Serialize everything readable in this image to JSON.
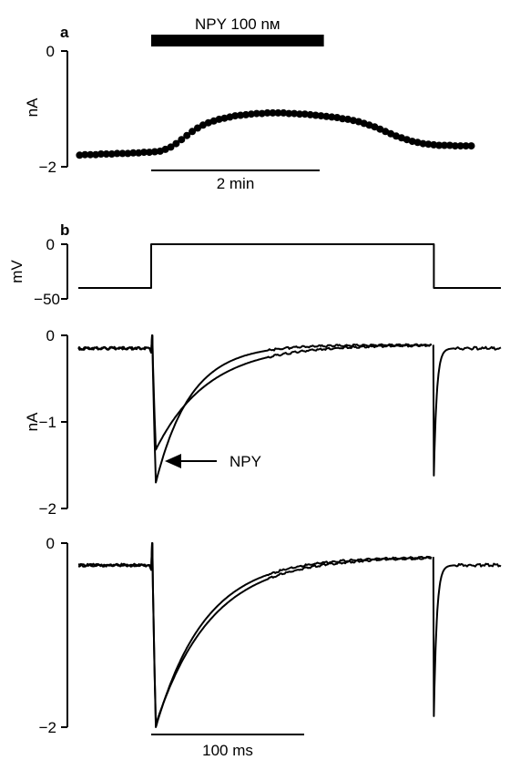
{
  "panels": {
    "a": "a",
    "b": "b"
  },
  "chart_data": [
    {
      "id": "a",
      "type": "scatter",
      "ylabel": "nA",
      "ylim": [
        -2,
        0
      ],
      "yticks": [
        {
          "v": 0,
          "label": "0"
        },
        {
          "v": -2,
          "label": "−2"
        }
      ],
      "bar_label": "NPY 100 nм",
      "bar_span_min": [
        0,
        2.05
      ],
      "scalebar_label": "2 min",
      "scalebar_min": 2,
      "x_min": [
        -0.85,
        3.8
      ],
      "y": [
        -1.8,
        -1.79,
        -1.79,
        -1.79,
        -1.78,
        -1.78,
        -1.78,
        -1.77,
        -1.77,
        -1.77,
        -1.76,
        -1.76,
        -1.75,
        -1.75,
        -1.74,
        -1.73,
        -1.7,
        -1.66,
        -1.6,
        -1.53,
        -1.46,
        -1.39,
        -1.33,
        -1.28,
        -1.24,
        -1.21,
        -1.18,
        -1.16,
        -1.14,
        -1.12,
        -1.11,
        -1.1,
        -1.09,
        -1.08,
        -1.08,
        -1.07,
        -1.07,
        -1.07,
        -1.07,
        -1.08,
        -1.08,
        -1.09,
        -1.09,
        -1.1,
        -1.11,
        -1.12,
        -1.13,
        -1.14,
        -1.15,
        -1.17,
        -1.18,
        -1.2,
        -1.22,
        -1.25,
        -1.28,
        -1.31,
        -1.35,
        -1.39,
        -1.43,
        -1.47,
        -1.5,
        -1.53,
        -1.56,
        -1.58,
        -1.6,
        -1.61,
        -1.62,
        -1.63,
        -1.63,
        -1.63,
        -1.64,
        -1.64,
        -1.64,
        -1.64
      ]
    },
    {
      "id": "b-voltage",
      "type": "line",
      "ylabel": "mV",
      "ylim": [
        -50,
        0
      ],
      "yticks": [
        {
          "v": 0,
          "label": "0"
        },
        {
          "v": -50,
          "label": "−50"
        }
      ],
      "x_ms": [
        -125,
        0,
        0,
        485,
        485,
        600
      ],
      "y": [
        -40,
        -40,
        0,
        0,
        -40,
        -40
      ]
    },
    {
      "id": "b-current-1",
      "type": "line",
      "ylabel": "nA",
      "ylim": [
        -2,
        0
      ],
      "yticks": [
        {
          "v": 0,
          "label": "0"
        },
        {
          "v": -1,
          "label": "−1"
        },
        {
          "v": -2,
          "label": "−2"
        }
      ],
      "annotation": "NPY",
      "holding_nA": -0.15,
      "step_end_nA": -0.11,
      "series": [
        {
          "peak_nA": -1.7,
          "tau_ms": 60
        },
        {
          "peak_nA": -1.32,
          "tau_ms": 90,
          "label": "NPY"
        }
      ],
      "tail_peak_nA": -1.62
    },
    {
      "id": "b-current-2",
      "type": "line",
      "ylabel": "",
      "ylim": [
        -2,
        0
      ],
      "yticks": [
        {
          "v": 0,
          "label": "0"
        },
        {
          "v": -2,
          "label": "−2"
        }
      ],
      "holding_nA": -0.24,
      "step_end_nA": -0.15,
      "series": [
        {
          "peak_nA": -2.0,
          "tau_ms": 85
        },
        {
          "peak_nA": -1.97,
          "tau_ms": 95
        }
      ],
      "tail_peak_nA": -1.88,
      "scalebar_label": "100 ms",
      "scalebar_ms": 100
    }
  ]
}
